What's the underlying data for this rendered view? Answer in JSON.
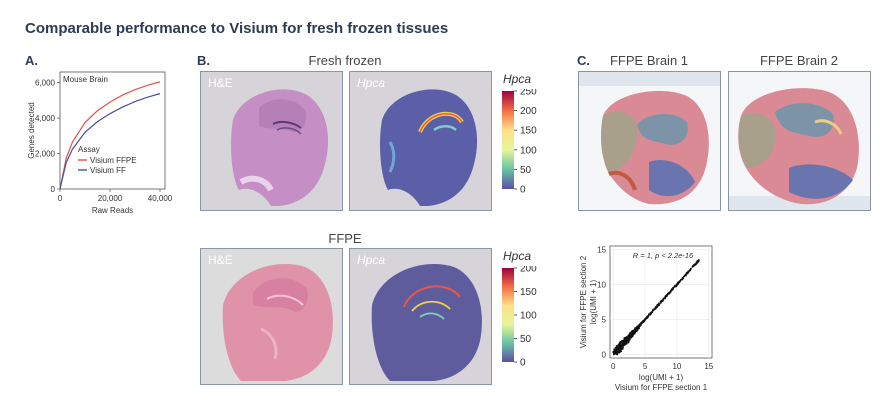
{
  "title": "Comparable performance to Visium for fresh frozen tissues",
  "panels": {
    "a_label": "A.",
    "b_label": "B.",
    "c_label": "C."
  },
  "fresh_frozen": {
    "title": "Fresh frozen",
    "he_label": "H&E",
    "gene_label": "Hpca",
    "colorbar_title": "Hpca",
    "colorbar_ticks": [
      "250",
      "200",
      "150",
      "100",
      "50",
      "0"
    ]
  },
  "ffpe": {
    "title": "FFPE",
    "he_label": "H&E",
    "gene_label": "Hpca",
    "colorbar_title": "Hpca",
    "colorbar_ticks": [
      "200",
      "150",
      "100",
      "50",
      "0"
    ]
  },
  "ffpe_brains": {
    "brain1": "FFPE Brain 1",
    "brain2": "FFPE Brain 2"
  },
  "colors": {
    "ffpe_line": "#e0524a",
    "ff_line": "#4a4f9e",
    "he_stain": "#c890c4",
    "title": "#2e3b55"
  },
  "chart_data": [
    {
      "type": "line",
      "panel_title": "Mouse Brain",
      "xlabel": "Raw Reads",
      "ylabel": "Genes detected",
      "xlim": [
        0,
        42000
      ],
      "ylim": [
        0,
        6600
      ],
      "xticks": [
        "0",
        "20,000",
        "40,000"
      ],
      "yticks": [
        "0",
        "2,000",
        "4,000",
        "6,000"
      ],
      "legend_title": "Assay",
      "legend_position": "bottom-right",
      "series": [
        {
          "name": "Visium FFPE",
          "color": "#e0524a",
          "x": [
            0,
            2500,
            5000,
            10000,
            15000,
            20000,
            25000,
            30000,
            35000,
            40000
          ],
          "y": [
            0,
            1750,
            2650,
            3750,
            4420,
            4900,
            5300,
            5600,
            5850,
            6050
          ]
        },
        {
          "name": "Visium FF",
          "color": "#4a4f9e",
          "x": [
            0,
            2500,
            5000,
            10000,
            15000,
            20000,
            25000,
            30000,
            35000,
            40000
          ],
          "y": [
            0,
            1500,
            2250,
            3200,
            3800,
            4250,
            4620,
            4930,
            5180,
            5380
          ]
        }
      ]
    },
    {
      "type": "scatter",
      "annotation": "R = 1, p < 2.2e-16",
      "xlabel_line1": "log(UMI + 1)",
      "xlabel_line2": "Visium for FFPE section 1",
      "ylabel_line1": "log(UMI + 1)",
      "ylabel_line2": "Visium for FFPE section 2",
      "xlim": [
        -0.5,
        15.5
      ],
      "ylim": [
        -0.5,
        15.5
      ],
      "xticks": [
        "0",
        "5",
        "10",
        "15"
      ],
      "yticks": [
        "0",
        "5",
        "10",
        "15"
      ],
      "grid": true
    }
  ]
}
